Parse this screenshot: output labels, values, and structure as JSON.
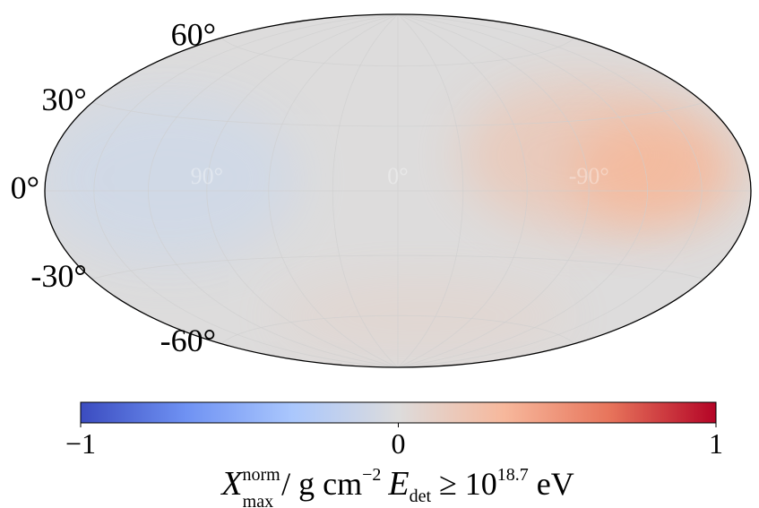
{
  "chart_data": {
    "type": "heatmap",
    "projection": "hammer-aitoff",
    "grid": true,
    "latitude_tick_labels": [
      "60°",
      "30°",
      "0°",
      "-30°",
      "-60°"
    ],
    "latitude_ticks": [
      60,
      30,
      0,
      -30,
      -60
    ],
    "longitude_tick_labels": [
      "90°",
      "0°",
      "-90°"
    ],
    "longitude_ticks": [
      90,
      0,
      -90
    ],
    "colorbar": {
      "colormap": "coolwarm",
      "range": [
        -1,
        1
      ],
      "ticks": [
        -1,
        0,
        1
      ],
      "tick_labels": [
        "−1",
        "0",
        "1"
      ],
      "orientation": "horizontal",
      "label_parts": {
        "symbol": "X",
        "sup": "norm",
        "sub": "max",
        "unit_prefix": " / g cm",
        "unit_exp": "−2",
        "energy_symbol": "E",
        "energy_sub": "det",
        "relation": " ≥ 10",
        "energy_exp": "18.7",
        "energy_unit": " eV"
      }
    },
    "features": [
      {
        "kind": "cold-spot",
        "lon": 110,
        "lat": 5,
        "value": -0.18,
        "width_deg": 70,
        "height_deg": 45
      },
      {
        "kind": "hot-spot",
        "lon": -125,
        "lat": 8,
        "value": 0.32,
        "width_deg": 45,
        "height_deg": 30
      },
      {
        "kind": "warm-region",
        "lon": -90,
        "lat": 15,
        "value": 0.18,
        "width_deg": 65,
        "height_deg": 40
      },
      {
        "kind": "warm-south",
        "lon": -20,
        "lat": -60,
        "value": 0.06,
        "width_deg": 80,
        "height_deg": 20
      }
    ],
    "colors": {
      "neutral": "#dddcdc",
      "cold_spot": "#c3d6f2",
      "hot_spot": "#f6b89a",
      "cmap_stops": [
        "#3b4cc0",
        "#6f92f3",
        "#aac7fd",
        "#dddcdc",
        "#f7b89c",
        "#e7745b",
        "#b40426"
      ]
    }
  }
}
